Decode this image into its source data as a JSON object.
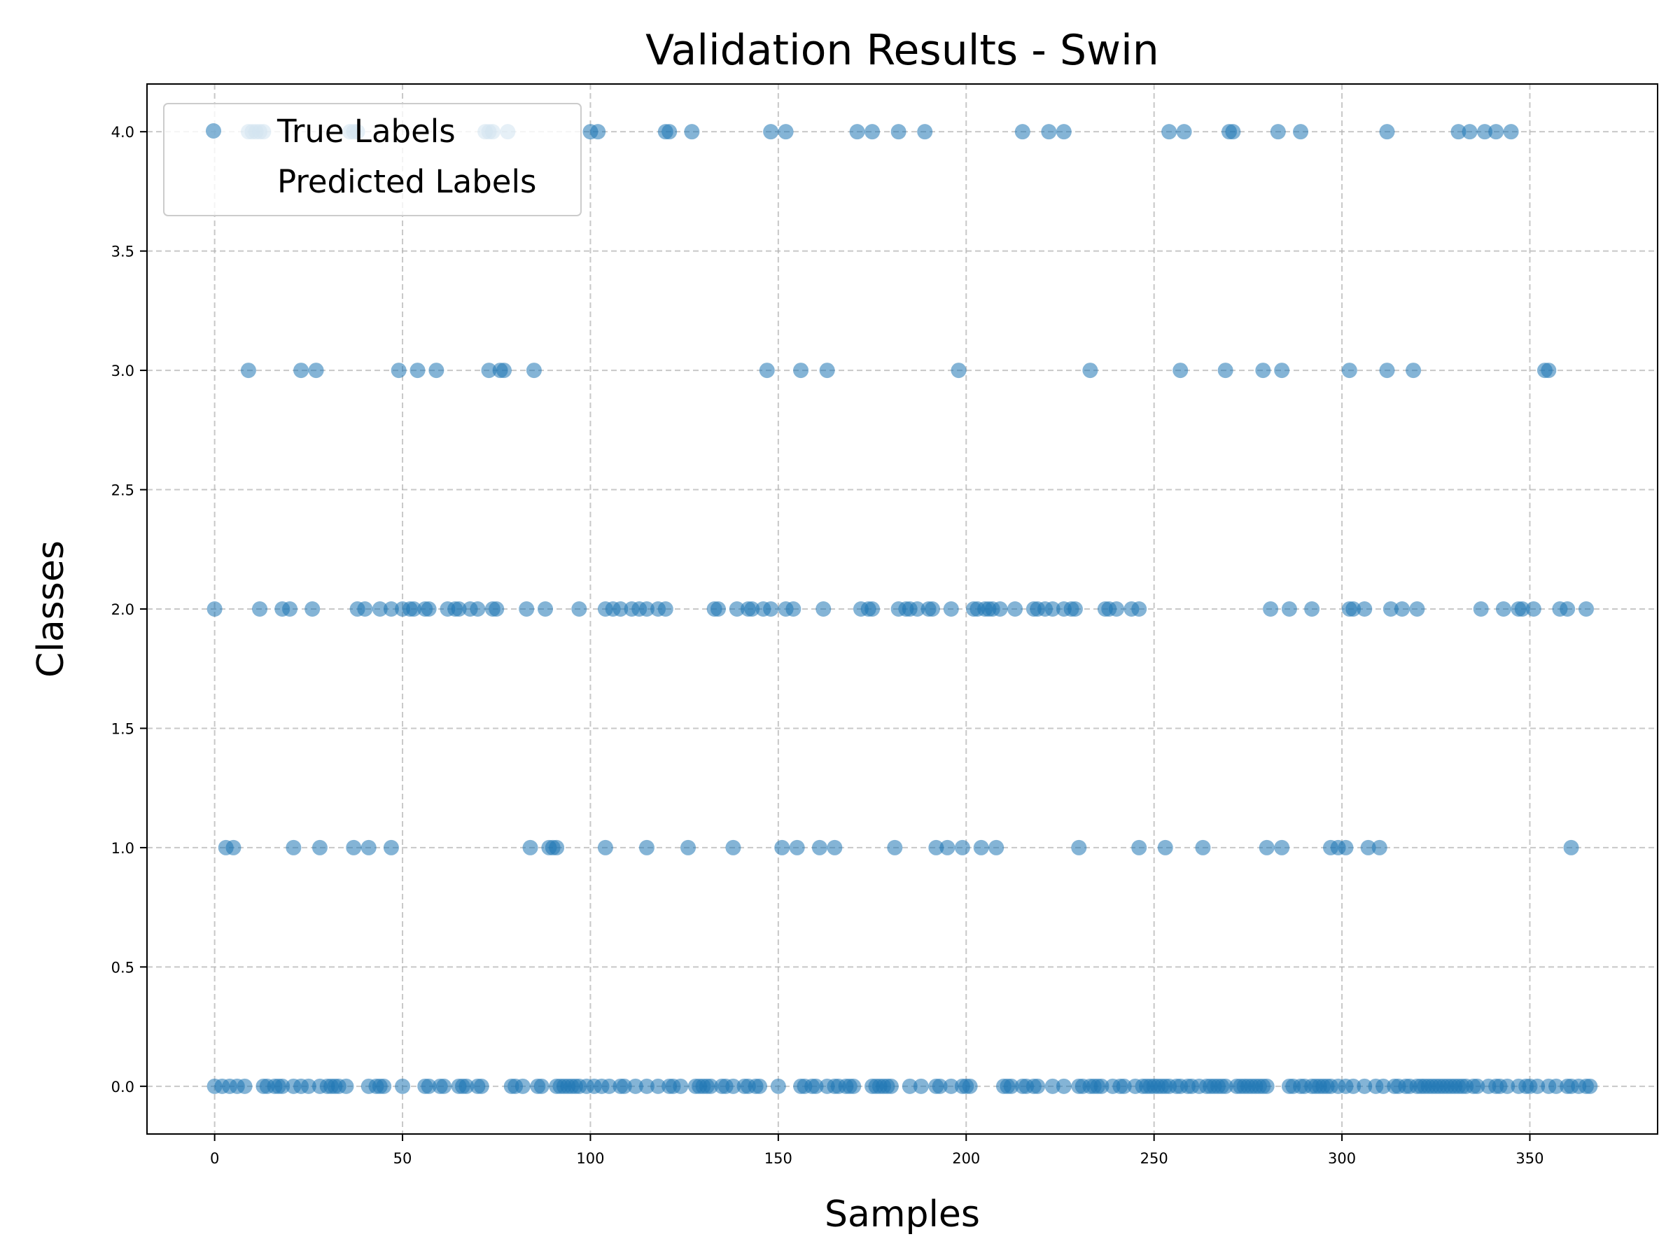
{
  "chart_data": {
    "type": "scatter",
    "title": "Validation Results - Swin",
    "xlabel": "Samples",
    "ylabel": "Classes",
    "xlim": [
      -18,
      384
    ],
    "ylim": [
      -0.2,
      4.2
    ],
    "xticks": [
      0,
      50,
      100,
      150,
      200,
      250,
      300,
      350
    ],
    "xtick_labels": [
      "0",
      "50",
      "100",
      "150",
      "200",
      "250",
      "300",
      "350"
    ],
    "yticks": [
      0.0,
      0.5,
      1.0,
      1.5,
      2.0,
      2.5,
      3.0,
      3.5,
      4.0
    ],
    "ytick_labels": [
      "0.0",
      "0.5",
      "1.0",
      "1.5",
      "2.0",
      "2.5",
      "3.0",
      "3.5",
      "4.0"
    ],
    "grid": true,
    "legend_position": "top-left",
    "colors": {
      "true_labels": "#1f77b4"
    },
    "series": [
      {
        "name": "True Labels",
        "color": "#1f77b4",
        "points": {
          "4": [
            9,
            10,
            11,
            12,
            13,
            36,
            37,
            38,
            72,
            73,
            74,
            78,
            100,
            102,
            120,
            121,
            127,
            148,
            152,
            171,
            175,
            182,
            189,
            215,
            222,
            226,
            254,
            258,
            270,
            271,
            283,
            289,
            312,
            331,
            334,
            338,
            341,
            345
          ],
          "3": [
            9,
            23,
            27,
            49,
            54,
            59,
            73,
            76,
            77,
            85,
            147,
            156,
            163,
            198,
            233,
            257,
            269,
            279,
            284,
            302,
            312,
            319,
            354,
            355
          ],
          "2": [
            0,
            12,
            18,
            20,
            26,
            38,
            40,
            44,
            47,
            50,
            52,
            53,
            56,
            57,
            62,
            64,
            65,
            68,
            70,
            74,
            75,
            83,
            88,
            97,
            104,
            106,
            108,
            111,
            113,
            115,
            118,
            120,
            133,
            134,
            139,
            142,
            143,
            146,
            148,
            152,
            154,
            162,
            172,
            174,
            175,
            182,
            184,
            185,
            187,
            190,
            191,
            196,
            202,
            203,
            205,
            206,
            207,
            209,
            213,
            218,
            219,
            221,
            223,
            226,
            228,
            229,
            237,
            238,
            240,
            244,
            246,
            281,
            286,
            292,
            302,
            303,
            306,
            313,
            316,
            320,
            337,
            343,
            347,
            348,
            351,
            358,
            360,
            365
          ],
          "1": [
            3,
            5,
            21,
            28,
            37,
            41,
            47,
            84,
            89,
            90,
            91,
            104,
            115,
            126,
            138,
            151,
            155,
            161,
            165,
            181,
            192,
            195,
            199,
            204,
            208,
            230,
            246,
            253,
            263,
            280,
            284,
            297,
            299,
            301,
            307,
            310,
            361
          ],
          "0": [
            0,
            2,
            4,
            6,
            8,
            13,
            14,
            16,
            17,
            18,
            21,
            23,
            25,
            28,
            30,
            31,
            32,
            33,
            35,
            41,
            43,
            44,
            45,
            50,
            56,
            57,
            60,
            61,
            65,
            66,
            67,
            70,
            71,
            79,
            80,
            82,
            86,
            87,
            91,
            92,
            93,
            94,
            95,
            96,
            97,
            99,
            101,
            103,
            105,
            108,
            109,
            112,
            115,
            118,
            121,
            122,
            124,
            128,
            129,
            130,
            131,
            132,
            135,
            136,
            138,
            141,
            142,
            144,
            145,
            150,
            156,
            157,
            159,
            160,
            163,
            165,
            166,
            168,
            169,
            170,
            175,
            176,
            177,
            178,
            179,
            180,
            185,
            188,
            192,
            193,
            196,
            199,
            200,
            201,
            210,
            211,
            212,
            215,
            216,
            218,
            219,
            223,
            226,
            230,
            231,
            233,
            234,
            235,
            236,
            239,
            241,
            242,
            245,
            247,
            248,
            249,
            250,
            251,
            252,
            253,
            254,
            256,
            257,
            259,
            260,
            262,
            264,
            265,
            266,
            267,
            268,
            269,
            272,
            273,
            274,
            275,
            276,
            277,
            278,
            279,
            280,
            286,
            287,
            289,
            290,
            292,
            293,
            294,
            295,
            296,
            297,
            299,
            301,
            303,
            306,
            309,
            311,
            314,
            315,
            317,
            318,
            320,
            321,
            322,
            323,
            324,
            325,
            326,
            327,
            328,
            329,
            330,
            331,
            332,
            333,
            335,
            336,
            339,
            341,
            342,
            344,
            347,
            349,
            350,
            352,
            355,
            357,
            360,
            361,
            363,
            365,
            366
          ]
        }
      },
      {
        "name": "Predicted Labels",
        "color": "#ffffff"
      }
    ]
  }
}
